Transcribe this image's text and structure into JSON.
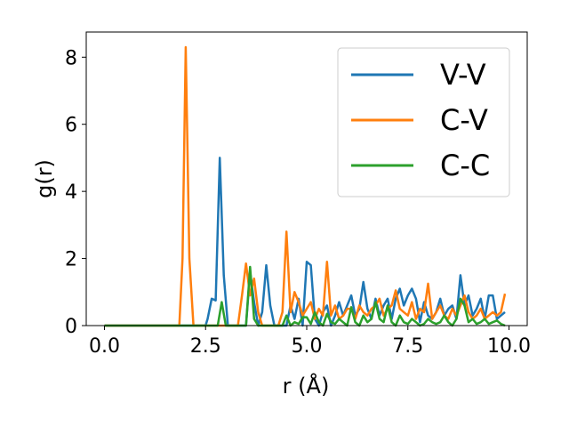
{
  "chart_data": {
    "type": "line",
    "title": "",
    "xlabel": "r (Å)",
    "ylabel": "g(r)",
    "xlim": [
      -0.45,
      10.45
    ],
    "ylim": [
      0,
      8.75
    ],
    "xticks": [
      0.0,
      2.5,
      5.0,
      7.5,
      10.0
    ],
    "xtick_labels": [
      "0.0",
      "2.5",
      "5.0",
      "7.5",
      "10.0"
    ],
    "yticks": [
      0,
      2,
      4,
      6,
      8
    ],
    "ytick_labels": [
      "0",
      "2",
      "4",
      "6",
      "8"
    ],
    "grid": false,
    "legend_position": "upper-right",
    "series": [
      {
        "name": "V-V",
        "color": "#1f77b4",
        "x": [
          0.0,
          2.5,
          2.55,
          2.65,
          2.75,
          2.85,
          2.95,
          3.05,
          3.15,
          3.25,
          3.5,
          3.6,
          3.7,
          3.8,
          3.9,
          4.0,
          4.1,
          4.2,
          4.5,
          4.6,
          4.7,
          4.8,
          4.9,
          5.0,
          5.1,
          5.2,
          5.3,
          5.4,
          5.5,
          5.6,
          5.7,
          5.8,
          5.9,
          6.0,
          6.1,
          6.2,
          6.3,
          6.4,
          6.5,
          6.6,
          6.7,
          6.8,
          6.9,
          7.0,
          7.1,
          7.2,
          7.3,
          7.4,
          7.5,
          7.6,
          7.7,
          7.8,
          7.9,
          8.0,
          8.1,
          8.2,
          8.3,
          8.4,
          8.5,
          8.6,
          8.7,
          8.8,
          8.9,
          9.0,
          9.1,
          9.2,
          9.3,
          9.4,
          9.5,
          9.6,
          9.7,
          9.8,
          9.9
        ],
        "y": [
          0,
          0,
          0.2,
          0.8,
          0.75,
          5.0,
          1.5,
          0,
          0,
          0,
          0,
          1.6,
          0.7,
          0,
          0.4,
          1.8,
          0.6,
          0,
          0,
          0.6,
          0.2,
          0.8,
          0,
          1.9,
          1.8,
          0.2,
          0,
          0.4,
          0.6,
          0,
          0.3,
          0.7,
          0.3,
          0.6,
          0.9,
          0.3,
          0.5,
          1.3,
          0.5,
          0.2,
          0.8,
          0.3,
          0.6,
          0.8,
          0.2,
          0.8,
          1.1,
          0.6,
          0.9,
          1.1,
          0.8,
          0.1,
          0.7,
          0.3,
          0.2,
          0.4,
          0.8,
          0.3,
          0.5,
          0.6,
          0.2,
          1.5,
          0.6,
          0.9,
          0.3,
          0.5,
          0.8,
          0.2,
          0.9,
          0.9,
          0.2,
          0.3,
          0.4
        ]
      },
      {
        "name": "C-V",
        "color": "#ff7f0e",
        "x": [
          0.0,
          1.85,
          1.93,
          2.01,
          2.1,
          2.2,
          3.3,
          3.4,
          3.5,
          3.6,
          3.7,
          3.8,
          3.9,
          4.0,
          4.1,
          4.3,
          4.4,
          4.5,
          4.6,
          4.7,
          4.8,
          4.9,
          5.0,
          5.1,
          5.2,
          5.3,
          5.4,
          5.5,
          5.6,
          5.7,
          5.8,
          5.9,
          6.0,
          6.1,
          6.2,
          6.3,
          6.4,
          6.5,
          6.6,
          6.7,
          6.8,
          6.9,
          7.0,
          7.1,
          7.2,
          7.3,
          7.4,
          7.5,
          7.6,
          7.7,
          7.8,
          7.9,
          8.0,
          8.1,
          8.2,
          8.3,
          8.4,
          8.5,
          8.6,
          8.7,
          8.8,
          8.9,
          9.0,
          9.1,
          9.2,
          9.3,
          9.4,
          9.5,
          9.6,
          9.7,
          9.8,
          9.9
        ],
        "y": [
          0,
          0,
          2.0,
          8.3,
          2.0,
          0,
          0,
          0.9,
          1.85,
          0.9,
          1.4,
          0.4,
          0,
          0,
          0,
          0,
          0.4,
          2.8,
          0.4,
          1.0,
          0.7,
          0.3,
          0.5,
          0.7,
          0.2,
          0.5,
          0.3,
          1.9,
          0.3,
          0.6,
          0.2,
          0.3,
          0.5,
          0.5,
          0.2,
          0.6,
          0.4,
          0.3,
          0.5,
          0.6,
          0.8,
          0.3,
          0.5,
          0.6,
          1.05,
          0.5,
          0.4,
          0.3,
          0.7,
          0.2,
          0.5,
          0.4,
          1.25,
          0.2,
          0.4,
          0.6,
          0.3,
          0.2,
          0.5,
          0.3,
          0.6,
          0.9,
          0.4,
          0.2,
          0.3,
          0.5,
          0.2,
          0.3,
          0.4,
          0.3,
          0.4,
          0.95
        ]
      },
      {
        "name": "C-C",
        "color": "#2ca02c",
        "x": [
          0.0,
          2.8,
          2.9,
          3.0,
          3.5,
          3.6,
          3.7,
          3.8,
          4.4,
          4.5,
          4.6,
          4.7,
          4.8,
          4.9,
          5.0,
          5.1,
          5.2,
          5.3,
          5.4,
          5.5,
          5.6,
          5.7,
          5.8,
          6.0,
          6.1,
          6.2,
          6.3,
          6.4,
          6.5,
          6.6,
          6.7,
          6.8,
          6.9,
          7.0,
          7.1,
          7.2,
          7.3,
          7.4,
          7.5,
          7.6,
          7.7,
          7.8,
          7.9,
          8.0,
          8.1,
          8.2,
          8.3,
          8.4,
          8.5,
          8.6,
          8.7,
          8.8,
          8.9,
          9.0,
          9.1,
          9.2,
          9.3,
          9.4,
          9.5,
          9.6,
          9.7,
          9.8,
          9.9
        ],
        "y": [
          0,
          0,
          0.7,
          0,
          0,
          1.75,
          0.2,
          0,
          0,
          0.3,
          0,
          0.1,
          0.05,
          0.25,
          0.25,
          0.05,
          0.4,
          0.1,
          0,
          0.35,
          0.1,
          0.05,
          0.2,
          0,
          0.55,
          0.1,
          0,
          0.3,
          0.1,
          0.2,
          0.7,
          0.2,
          0.1,
          0.6,
          0.1,
          0,
          0.3,
          0.1,
          0.05,
          0.2,
          0.1,
          0,
          0.05,
          0.2,
          0.1,
          0.05,
          0.1,
          0.3,
          0.1,
          0,
          0.2,
          0.8,
          0.6,
          0.1,
          0.2,
          0.05,
          0.1,
          0.2,
          0.05,
          0.1,
          0.15,
          0.05,
          0
        ]
      }
    ]
  }
}
